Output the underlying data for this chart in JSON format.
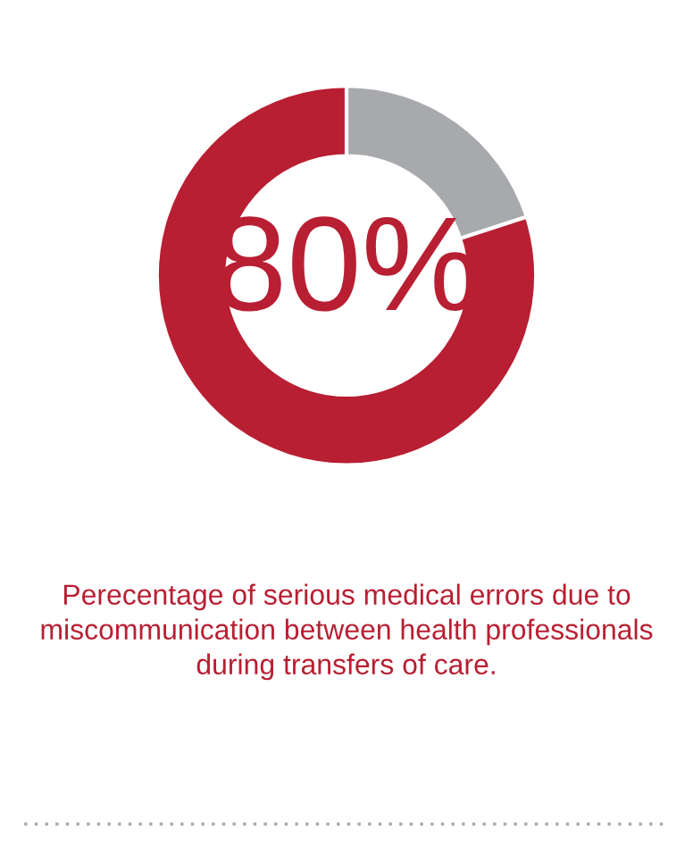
{
  "chart_data": {
    "type": "donut",
    "categories": [
      null,
      null
    ],
    "values": [
      20,
      80
    ],
    "colors": [
      "#a7a9ac",
      "#b81f32"
    ],
    "value_labels": [
      null,
      "80%"
    ],
    "annotations": [
      "Perecentage of serious medical errors due to miscommunication between health professionals during transfers of care."
    ]
  }
}
